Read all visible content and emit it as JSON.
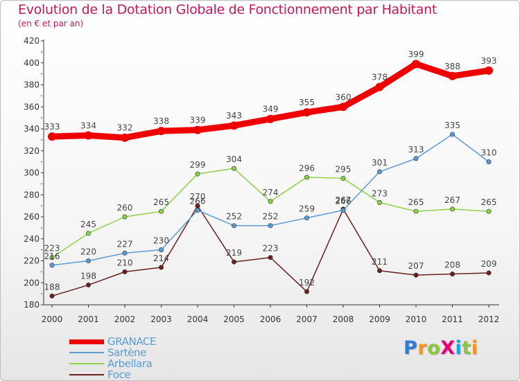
{
  "header": {
    "title": "Evolution de la Dotation Globale de Fonctionnement par Habitant",
    "subtitle": "(en € et par an)"
  },
  "logo": {
    "text": "ProXiti",
    "colors": [
      "#2e7bd6",
      "#f7941d",
      "#8dc63f",
      "#e6007e",
      "#00aeef",
      "#8dc63f",
      "#f7941d"
    ]
  },
  "chart_data": {
    "type": "line",
    "title": "Evolution de la Dotation Globale de Fonctionnement par Habitant",
    "subtitle": "(en € et par an)",
    "xlabel": "",
    "ylabel": "",
    "categories": [
      "2000",
      "2001",
      "2002",
      "2003",
      "2004",
      "2005",
      "2006",
      "2007",
      "2008",
      "2009",
      "2010",
      "2011",
      "2012"
    ],
    "y_ticks": [
      180,
      200,
      220,
      240,
      260,
      280,
      300,
      320,
      340,
      360,
      380,
      400,
      420
    ],
    "ylim": [
      180,
      420
    ],
    "grid": false,
    "legend_position": "bottom-left",
    "series": [
      {
        "name": "GRANACE",
        "color": "#ee0000",
        "values": [
          333,
          334,
          332,
          338,
          339,
          343,
          349,
          355,
          360,
          378,
          399,
          388,
          393
        ],
        "labels": [
          "333",
          "334",
          "332",
          "338",
          "339",
          "343",
          "349",
          "355",
          "360",
          "378",
          "399",
          "388",
          "393"
        ]
      },
      {
        "name": "Sartène",
        "color": "#5b9bd5",
        "values": [
          216,
          220,
          227,
          230,
          266,
          252,
          252,
          259,
          266,
          301,
          313,
          335,
          310
        ],
        "labels": [
          "216",
          "220",
          "227",
          "230",
          "266",
          "252",
          "252",
          "259",
          "266",
          "301",
          "313",
          "335",
          "310"
        ]
      },
      {
        "name": "Arbellara",
        "color": "#8bd147",
        "values": [
          223,
          245,
          260,
          265,
          299,
          304,
          274,
          296,
          295,
          273,
          265,
          267,
          265
        ],
        "labels": [
          "223",
          "245",
          "260",
          "265",
          "299",
          "304",
          "274",
          "296",
          "295",
          "273",
          "265",
          "267",
          "265"
        ]
      },
      {
        "name": "Foce",
        "color": "#6b1f1f",
        "values": [
          188,
          198,
          210,
          214,
          270,
          219,
          223,
          192,
          267,
          211,
          207,
          208,
          209
        ],
        "labels": [
          "188",
          "198",
          "210",
          "214",
          "270",
          "219",
          "223",
          "192",
          "267",
          "211",
          "207",
          "208",
          "209"
        ]
      }
    ]
  }
}
